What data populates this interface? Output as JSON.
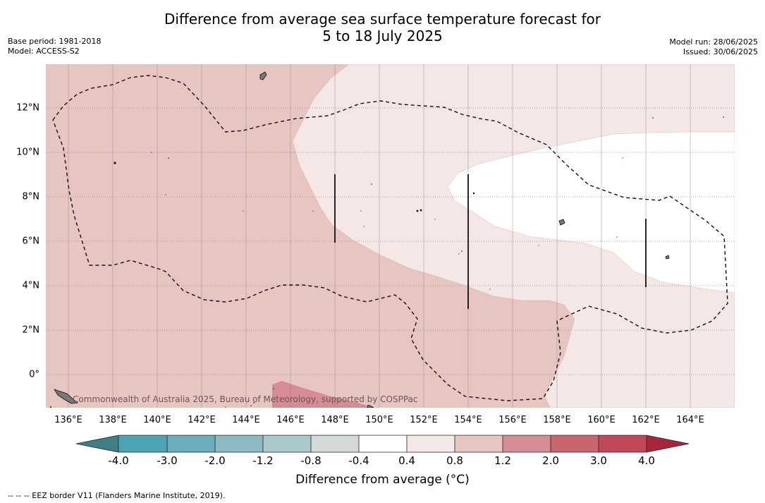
{
  "header": {
    "title_line1": "Difference from average sea surface temperature forecast for",
    "title_line2": "5 to 18 July 2025",
    "base_period": "Base period: 1981-2018",
    "model": "Model: ACCESS-S2",
    "model_run": "Model run: 28/06/2025",
    "issued": "Issued: 30/06/2025"
  },
  "map": {
    "lon_labels": [
      "136°E",
      "138°E",
      "140°E",
      "142°E",
      "144°E",
      "146°E",
      "148°E",
      "150°E",
      "152°E",
      "154°E",
      "156°E",
      "158°E",
      "160°E",
      "162°E",
      "164°E"
    ],
    "lat_labels": [
      "12°N",
      "10°N",
      "8°N",
      "6°N",
      "4°N",
      "2°N",
      "0°"
    ],
    "watermark": "Commonwealth of Australia 2025, Bureau of Meteorology, supported by COSPPac",
    "fill_colors": {
      "band_0p8_1p2": "#e7c5c1",
      "band_0p4_0p8": "#f4e7e5",
      "band_m0p4_0p4": "#ffffff",
      "band_1p2_2p0": "#d58d93"
    }
  },
  "colorbar": {
    "ticks": [
      "-4.0",
      "-3.0",
      "-2.0",
      "-1.2",
      "-0.8",
      "-0.4",
      "0.4",
      "0.8",
      "1.2",
      "2.0",
      "3.0",
      "4.0"
    ],
    "colors": [
      "#3f7f86",
      "#4ba3b3",
      "#6aaebd",
      "#8bbac5",
      "#a9c9cd",
      "#d2d9d7",
      "#ffffff",
      "#f4e7e5",
      "#e7c5c1",
      "#d58d93",
      "#c9656e",
      "#c04859",
      "#a8253d"
    ],
    "label": "Difference from average (°C)"
  },
  "footer": {
    "legend_note": "--  --  -- EEZ border V11 (Flanders Marine Institute, 2019)."
  }
}
